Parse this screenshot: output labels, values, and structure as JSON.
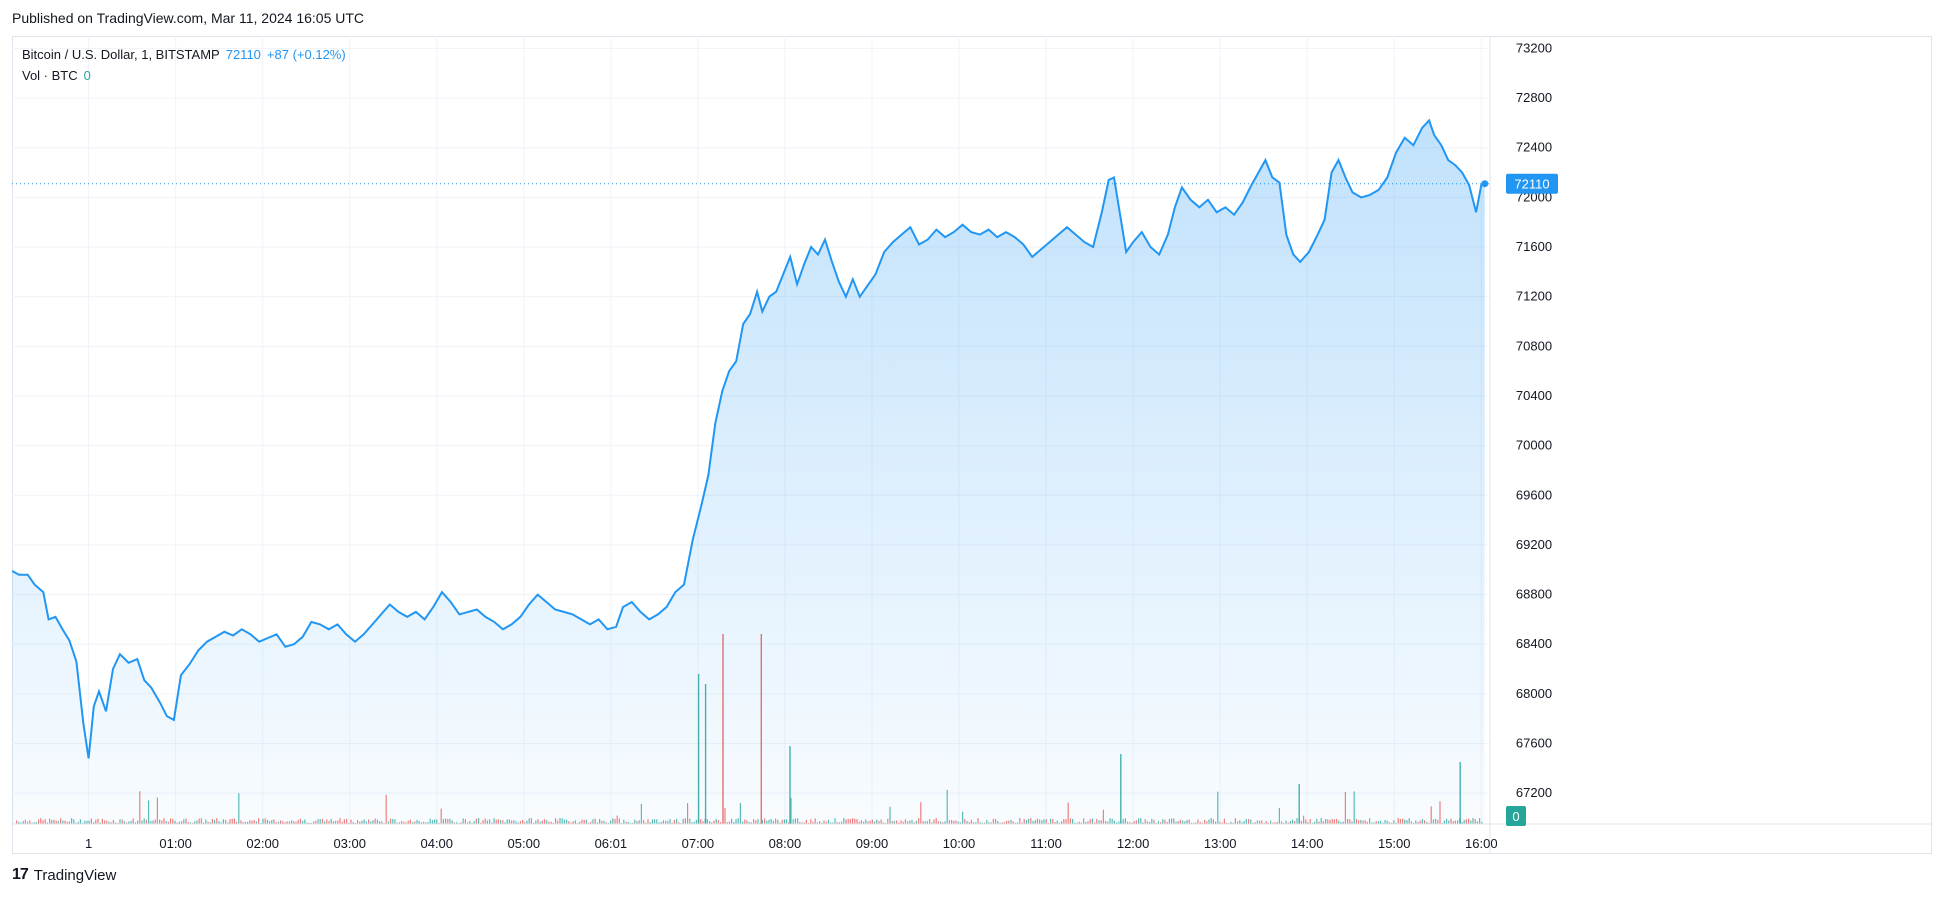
{
  "published": "Published on TradingView.com, Mar 11, 2024 16:05 UTC",
  "legend": {
    "symbol": "Bitcoin / U.S. Dollar, 1, BITSTAMP",
    "price": "72110",
    "change": "+87 (+0.12%)",
    "vol_label": "Vol · BTC",
    "vol_value": "0"
  },
  "brand": {
    "logo": "17",
    "name": "TradingView"
  },
  "colors": {
    "line": "#2196f3",
    "up": "#26a69a",
    "down": "#ef5350",
    "grid": "#f0f3fa"
  },
  "chart_data": {
    "type": "area",
    "x_ticks": [
      {
        "label": "1",
        "h": 0
      },
      {
        "label": "01:00",
        "h": 1
      },
      {
        "label": "02:00",
        "h": 2
      },
      {
        "label": "03:00",
        "h": 3
      },
      {
        "label": "04:00",
        "h": 4
      },
      {
        "label": "05:00",
        "h": 5
      },
      {
        "label": "06:01",
        "h": 6
      },
      {
        "label": "07:00",
        "h": 7
      },
      {
        "label": "08:00",
        "h": 8
      },
      {
        "label": "09:00",
        "h": 9
      },
      {
        "label": "10:00",
        "h": 10
      },
      {
        "label": "11:00",
        "h": 11
      },
      {
        "label": "12:00",
        "h": 12
      },
      {
        "label": "13:00",
        "h": 13
      },
      {
        "label": "14:00",
        "h": 14
      },
      {
        "label": "15:00",
        "h": 15
      },
      {
        "label": "16:00",
        "h": 16
      }
    ],
    "x_range_hours": [
      -0.88,
      16.1
    ],
    "y_ticks": [
      67200,
      67600,
      68000,
      68400,
      68800,
      69200,
      69600,
      70000,
      70400,
      70800,
      71200,
      71600,
      72000,
      72400,
      72800,
      73200
    ],
    "ylim": [
      67000,
      73300
    ],
    "last_price": 72110,
    "last_volume_label": "0",
    "series": [
      {
        "values": [
          [
            -0.88,
            68990
          ],
          [
            -0.8,
            68960
          ],
          [
            -0.7,
            68960
          ],
          [
            -0.62,
            68880
          ],
          [
            -0.52,
            68820
          ],
          [
            -0.46,
            68600
          ],
          [
            -0.38,
            68620
          ],
          [
            -0.3,
            68520
          ],
          [
            -0.22,
            68430
          ],
          [
            -0.14,
            68260
          ],
          [
            -0.06,
            67760
          ],
          [
            0.0,
            67480
          ],
          [
            0.06,
            67900
          ],
          [
            0.12,
            68020
          ],
          [
            0.2,
            67860
          ],
          [
            0.28,
            68200
          ],
          [
            0.36,
            68320
          ],
          [
            0.46,
            68250
          ],
          [
            0.56,
            68280
          ],
          [
            0.64,
            68110
          ],
          [
            0.72,
            68050
          ],
          [
            0.82,
            67930
          ],
          [
            0.9,
            67820
          ],
          [
            0.98,
            67790
          ],
          [
            1.06,
            68150
          ],
          [
            1.16,
            68240
          ],
          [
            1.26,
            68350
          ],
          [
            1.36,
            68420
          ],
          [
            1.46,
            68460
          ],
          [
            1.56,
            68500
          ],
          [
            1.66,
            68470
          ],
          [
            1.76,
            68520
          ],
          [
            1.86,
            68480
          ],
          [
            1.96,
            68420
          ],
          [
            2.06,
            68450
          ],
          [
            2.16,
            68480
          ],
          [
            2.26,
            68380
          ],
          [
            2.36,
            68400
          ],
          [
            2.46,
            68460
          ],
          [
            2.56,
            68580
          ],
          [
            2.66,
            68560
          ],
          [
            2.76,
            68520
          ],
          [
            2.86,
            68560
          ],
          [
            2.96,
            68480
          ],
          [
            3.06,
            68420
          ],
          [
            3.16,
            68480
          ],
          [
            3.26,
            68560
          ],
          [
            3.36,
            68640
          ],
          [
            3.46,
            68720
          ],
          [
            3.56,
            68660
          ],
          [
            3.66,
            68620
          ],
          [
            3.76,
            68660
          ],
          [
            3.86,
            68600
          ],
          [
            3.96,
            68700
          ],
          [
            4.06,
            68820
          ],
          [
            4.16,
            68740
          ],
          [
            4.26,
            68640
          ],
          [
            4.36,
            68660
          ],
          [
            4.46,
            68680
          ],
          [
            4.56,
            68620
          ],
          [
            4.66,
            68580
          ],
          [
            4.76,
            68520
          ],
          [
            4.86,
            68560
          ],
          [
            4.96,
            68620
          ],
          [
            5.06,
            68720
          ],
          [
            5.16,
            68800
          ],
          [
            5.26,
            68740
          ],
          [
            5.36,
            68680
          ],
          [
            5.46,
            68660
          ],
          [
            5.56,
            68640
          ],
          [
            5.66,
            68600
          ],
          [
            5.76,
            68560
          ],
          [
            5.86,
            68600
          ],
          [
            5.96,
            68520
          ],
          [
            6.06,
            68540
          ],
          [
            6.14,
            68700
          ],
          [
            6.24,
            68740
          ],
          [
            6.34,
            68660
          ],
          [
            6.44,
            68600
          ],
          [
            6.54,
            68640
          ],
          [
            6.64,
            68700
          ],
          [
            6.74,
            68820
          ],
          [
            6.84,
            68880
          ],
          [
            6.94,
            69240
          ],
          [
            7.04,
            69520
          ],
          [
            7.12,
            69760
          ],
          [
            7.2,
            70180
          ],
          [
            7.28,
            70440
          ],
          [
            7.36,
            70600
          ],
          [
            7.44,
            70680
          ],
          [
            7.52,
            70980
          ],
          [
            7.6,
            71060
          ],
          [
            7.68,
            71240
          ],
          [
            7.74,
            71080
          ],
          [
            7.82,
            71200
          ],
          [
            7.9,
            71240
          ],
          [
            7.98,
            71380
          ],
          [
            8.06,
            71520
          ],
          [
            8.14,
            71300
          ],
          [
            8.22,
            71460
          ],
          [
            8.3,
            71600
          ],
          [
            8.38,
            71540
          ],
          [
            8.46,
            71660
          ],
          [
            8.54,
            71480
          ],
          [
            8.62,
            71320
          ],
          [
            8.7,
            71200
          ],
          [
            8.78,
            71340
          ],
          [
            8.86,
            71200
          ],
          [
            8.94,
            71280
          ],
          [
            9.04,
            71380
          ],
          [
            9.14,
            71560
          ],
          [
            9.24,
            71640
          ],
          [
            9.34,
            71700
          ],
          [
            9.44,
            71760
          ],
          [
            9.54,
            71620
          ],
          [
            9.64,
            71660
          ],
          [
            9.74,
            71740
          ],
          [
            9.84,
            71680
          ],
          [
            9.94,
            71720
          ],
          [
            10.04,
            71780
          ],
          [
            10.14,
            71720
          ],
          [
            10.24,
            71700
          ],
          [
            10.34,
            71740
          ],
          [
            10.44,
            71680
          ],
          [
            10.54,
            71720
          ],
          [
            10.64,
            71680
          ],
          [
            10.74,
            71620
          ],
          [
            10.84,
            71520
          ],
          [
            10.94,
            71580
          ],
          [
            11.04,
            71640
          ],
          [
            11.14,
            71700
          ],
          [
            11.24,
            71760
          ],
          [
            11.34,
            71700
          ],
          [
            11.44,
            71640
          ],
          [
            11.54,
            71600
          ],
          [
            11.64,
            71880
          ],
          [
            11.72,
            72140
          ],
          [
            11.78,
            72160
          ],
          [
            11.86,
            71820
          ],
          [
            11.92,
            71560
          ],
          [
            12.0,
            71640
          ],
          [
            12.1,
            71720
          ],
          [
            12.2,
            71600
          ],
          [
            12.3,
            71540
          ],
          [
            12.4,
            71700
          ],
          [
            12.48,
            71920
          ],
          [
            12.56,
            72080
          ],
          [
            12.66,
            71980
          ],
          [
            12.76,
            71920
          ],
          [
            12.86,
            71980
          ],
          [
            12.96,
            71880
          ],
          [
            13.06,
            71920
          ],
          [
            13.16,
            71860
          ],
          [
            13.26,
            71960
          ],
          [
            13.36,
            72100
          ],
          [
            13.44,
            72200
          ],
          [
            13.52,
            72300
          ],
          [
            13.6,
            72160
          ],
          [
            13.68,
            72120
          ],
          [
            13.76,
            71700
          ],
          [
            13.84,
            71540
          ],
          [
            13.92,
            71480
          ],
          [
            14.02,
            71560
          ],
          [
            14.12,
            71700
          ],
          [
            14.2,
            71820
          ],
          [
            14.28,
            72200
          ],
          [
            14.36,
            72300
          ],
          [
            14.44,
            72160
          ],
          [
            14.52,
            72040
          ],
          [
            14.62,
            72000
          ],
          [
            14.72,
            72020
          ],
          [
            14.82,
            72060
          ],
          [
            14.92,
            72160
          ],
          [
            15.02,
            72360
          ],
          [
            15.12,
            72480
          ],
          [
            15.22,
            72420
          ],
          [
            15.32,
            72560
          ],
          [
            15.4,
            72620
          ],
          [
            15.46,
            72500
          ],
          [
            15.54,
            72420
          ],
          [
            15.62,
            72300
          ],
          [
            15.7,
            72260
          ],
          [
            15.78,
            72200
          ],
          [
            15.86,
            72100
          ],
          [
            15.94,
            71880
          ],
          [
            16.0,
            72100
          ],
          [
            16.04,
            72110
          ]
        ]
      }
    ]
  }
}
